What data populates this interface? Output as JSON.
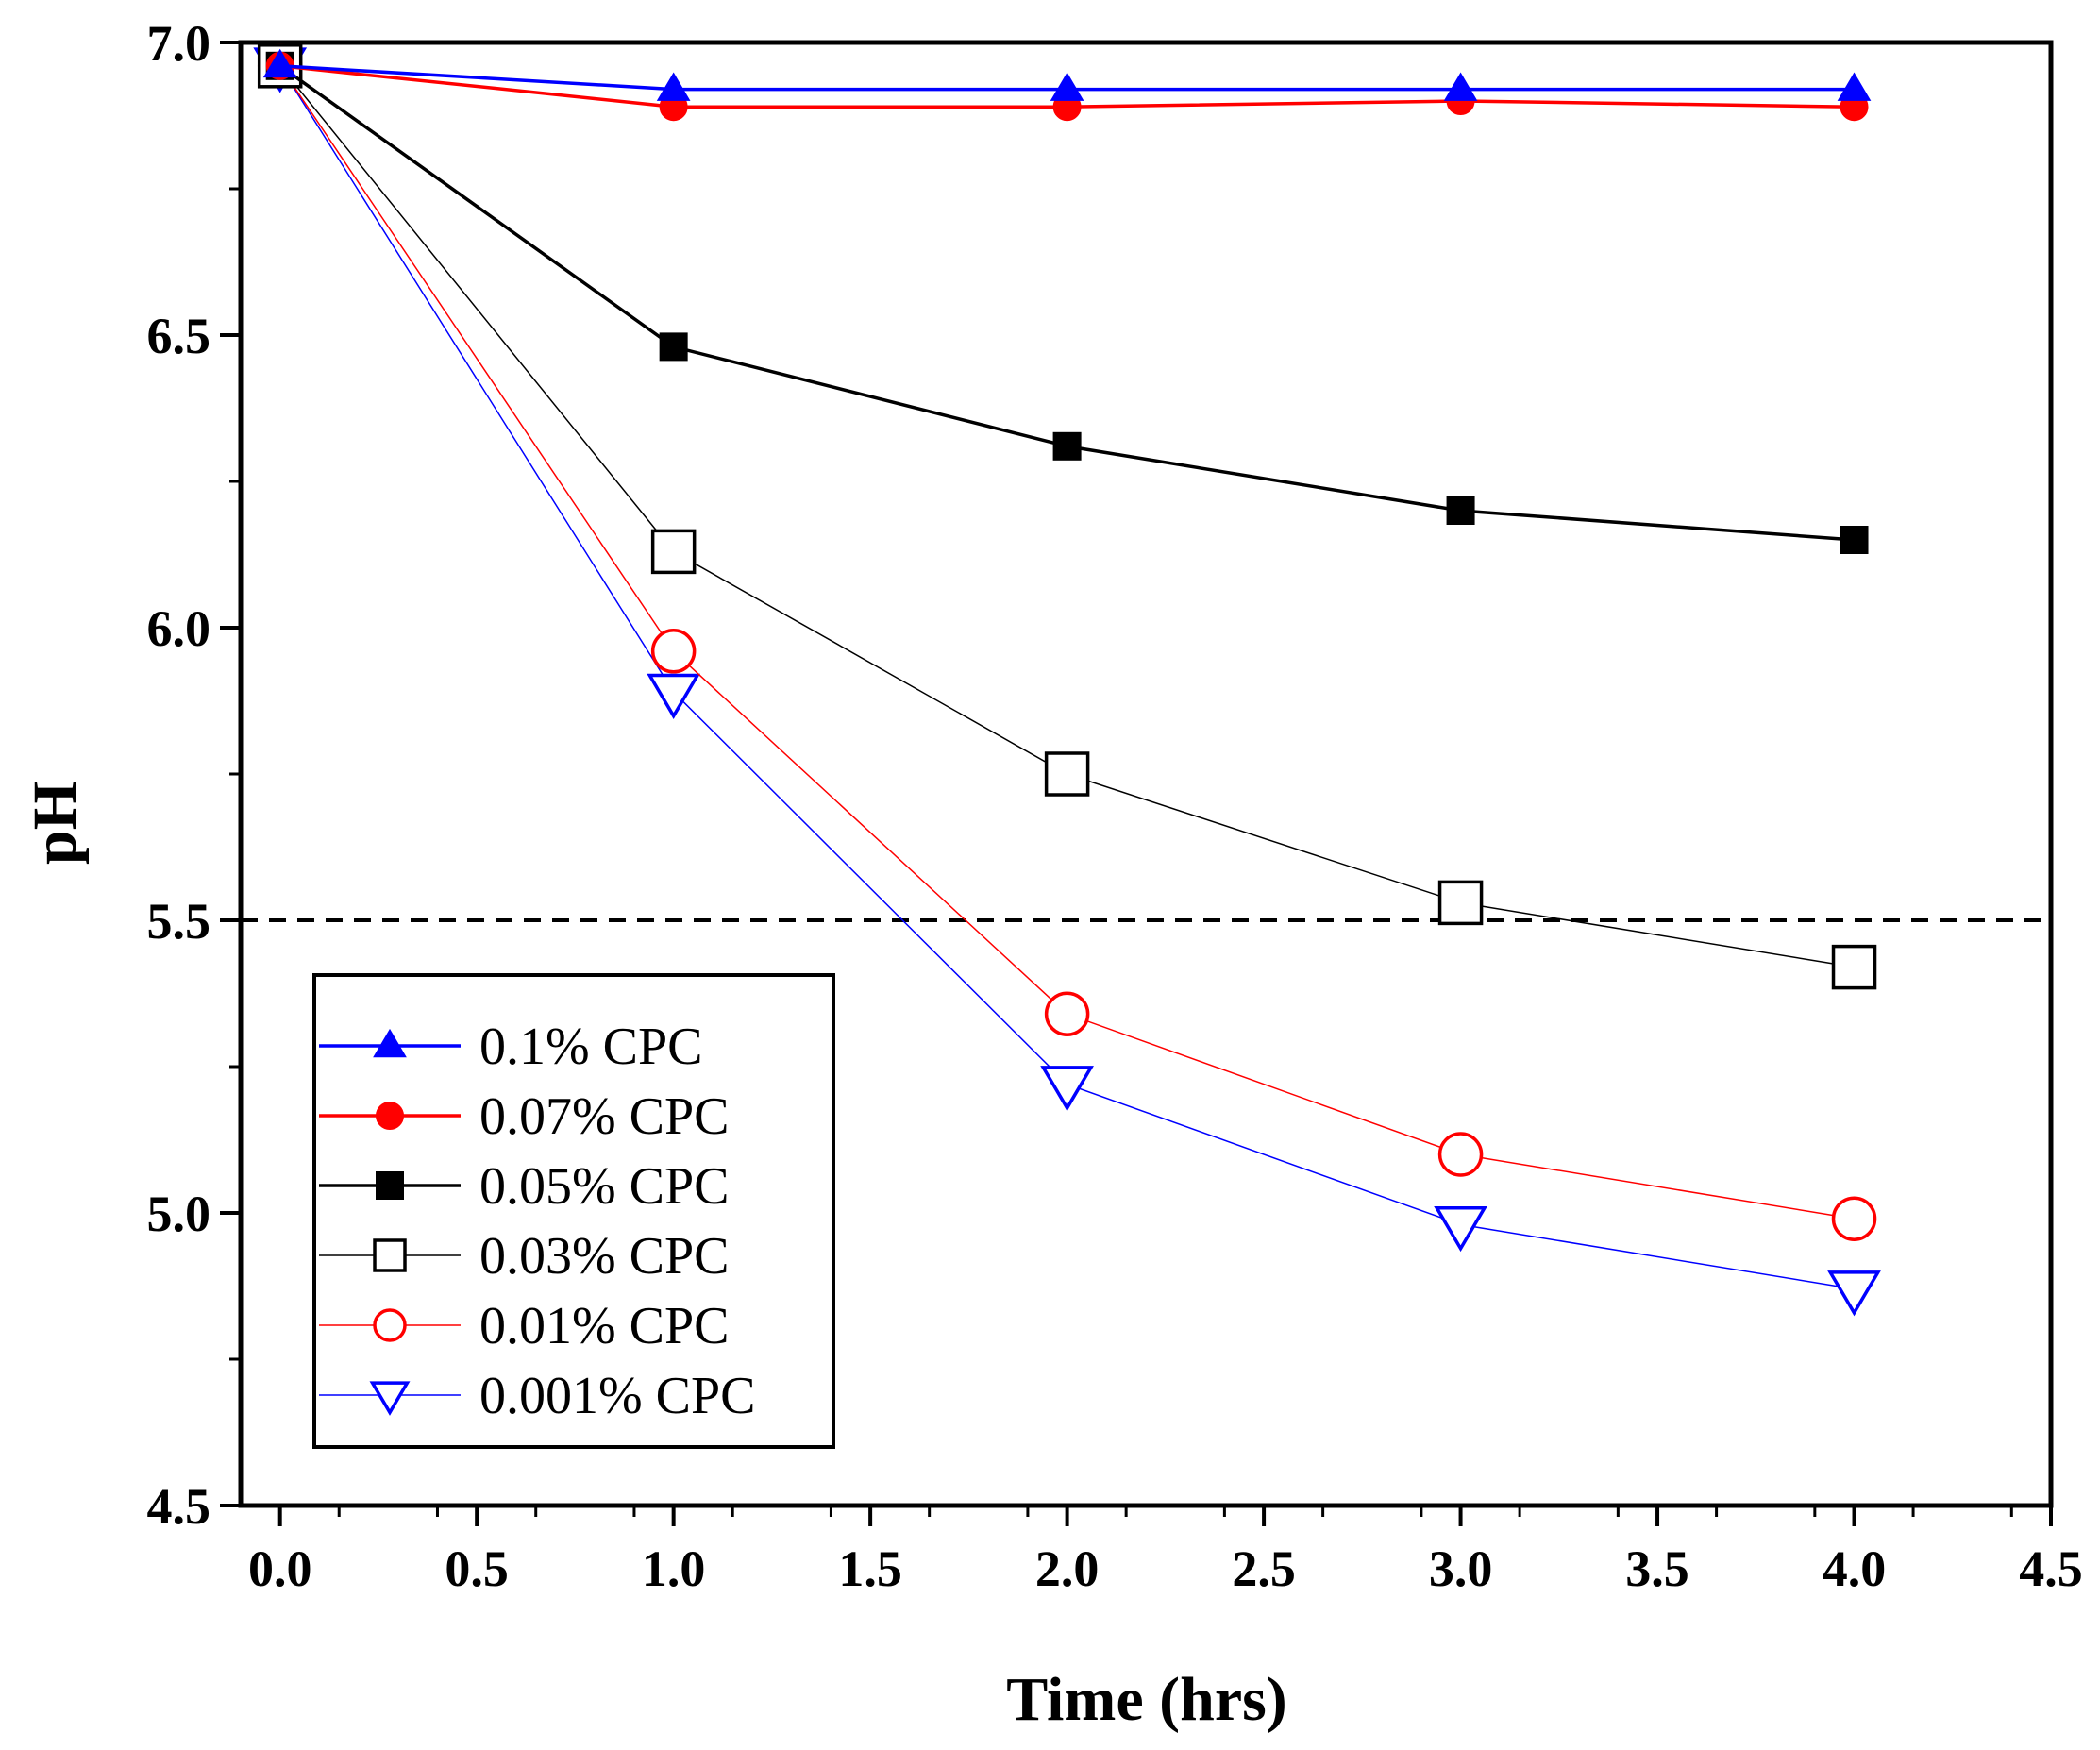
{
  "chart_data": {
    "type": "line",
    "title": "",
    "xlabel": "Time (hrs)",
    "ylabel": "pH",
    "xlim": [
      -0.1,
      4.5
    ],
    "ylim": [
      4.5,
      7.0
    ],
    "xticks": [
      0.0,
      0.5,
      1.0,
      1.5,
      2.0,
      2.5,
      3.0,
      3.5,
      4.0,
      4.5
    ],
    "xtick_labels": [
      "0.0",
      "0.5",
      "1.0",
      "1.5",
      "2.0",
      "2.5",
      "3.0",
      "3.5",
      "4.0",
      "4.5"
    ],
    "yticks": [
      4.5,
      5.0,
      5.5,
      6.0,
      6.5,
      7.0
    ],
    "ytick_labels": [
      "4.5",
      "5.0",
      "5.5",
      "6.0",
      "6.5",
      "7.0"
    ],
    "grid": false,
    "reference_line": {
      "y": 5.5,
      "style": "dashed",
      "color": "#000000"
    },
    "legend_position": "bottom-left",
    "x": [
      0,
      1,
      2,
      3,
      4
    ],
    "series": [
      {
        "name": "0.1% CPC",
        "values": [
          6.96,
          6.92,
          6.92,
          6.92,
          6.92
        ],
        "color": "#0000ff",
        "marker": "triangle-up",
        "filled": true,
        "line": "thick"
      },
      {
        "name": "0.07% CPC",
        "values": [
          6.96,
          6.89,
          6.89,
          6.9,
          6.89
        ],
        "color": "#ff0000",
        "marker": "circle",
        "filled": true,
        "line": "thick"
      },
      {
        "name": "0.05% CPC",
        "values": [
          6.96,
          6.48,
          6.31,
          6.2,
          6.15
        ],
        "color": "#000000",
        "marker": "square",
        "filled": true,
        "line": "thick"
      },
      {
        "name": "0.03% CPC",
        "values": [
          6.96,
          6.13,
          5.75,
          5.53,
          5.42
        ],
        "color": "#000000",
        "marker": "square",
        "filled": false,
        "line": "thin"
      },
      {
        "name": "0.01% CPC",
        "values": [
          6.96,
          5.96,
          5.34,
          5.1,
          4.99
        ],
        "color": "#ff0000",
        "marker": "circle",
        "filled": false,
        "line": "thin"
      },
      {
        "name": "0.001% CPC",
        "values": [
          6.96,
          5.89,
          5.22,
          4.98,
          4.87
        ],
        "color": "#0000ff",
        "marker": "triangle-down",
        "filled": false,
        "line": "thin"
      }
    ]
  }
}
